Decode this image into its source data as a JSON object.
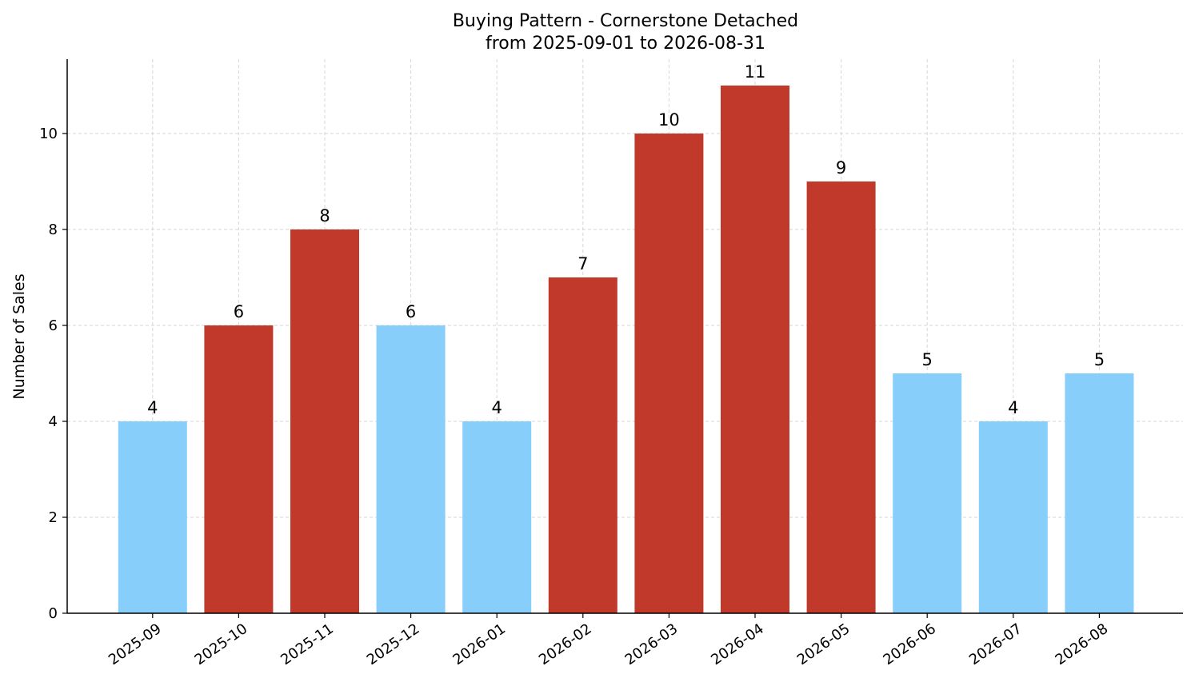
{
  "chart_data": {
    "type": "bar",
    "title": "Buying Pattern - Cornerstone Detached",
    "subtitle": "from 2025-09-01 to 2026-08-31",
    "xlabel": "",
    "ylabel": "Number of Sales",
    "ylim": [
      0,
      11.55
    ],
    "yticks": [
      0,
      2,
      4,
      6,
      8,
      10
    ],
    "grid": true,
    "categories": [
      "2025-09",
      "2025-10",
      "2025-11",
      "2025-12",
      "2026-01",
      "2026-02",
      "2026-03",
      "2026-04",
      "2026-05",
      "2026-06",
      "2026-07",
      "2026-08"
    ],
    "values": [
      4,
      6,
      8,
      6,
      4,
      7,
      10,
      11,
      9,
      5,
      4,
      5
    ],
    "bar_colors": [
      "#87cefa",
      "#c0392b",
      "#c0392b",
      "#87cefa",
      "#87cefa",
      "#c0392b",
      "#c0392b",
      "#c0392b",
      "#c0392b",
      "#87cefa",
      "#87cefa",
      "#87cefa"
    ]
  }
}
